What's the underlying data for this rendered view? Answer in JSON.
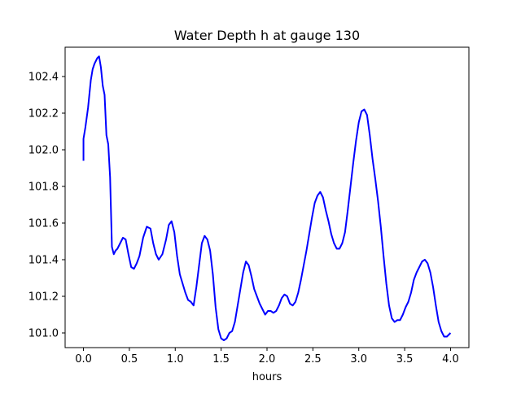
{
  "chart_data": {
    "type": "line",
    "title": "Water Depth h at gauge 130",
    "xlabel": "hours",
    "ylabel": "",
    "xlim": [
      -0.2,
      4.2
    ],
    "ylim": [
      100.92,
      102.56
    ],
    "xticks": [
      0.0,
      0.5,
      1.0,
      1.5,
      2.0,
      2.5,
      3.0,
      3.5,
      4.0
    ],
    "xtick_labels": [
      "0.0",
      "0.5",
      "1.0",
      "1.5",
      "2.0",
      "2.5",
      "3.0",
      "3.5",
      "4.0"
    ],
    "yticks": [
      101.0,
      101.2,
      101.4,
      101.6,
      101.8,
      102.0,
      102.2,
      102.4
    ],
    "ytick_labels": [
      "101.0",
      "101.2",
      "101.4",
      "101.6",
      "101.8",
      "102.0",
      "102.2",
      "102.4"
    ],
    "grid": false,
    "legend": "none",
    "series": [
      {
        "color": "#0000ff",
        "x": [
          0.0,
          0.0,
          0.02,
          0.05,
          0.08,
          0.1,
          0.12,
          0.15,
          0.17,
          0.19,
          0.21,
          0.23,
          0.25,
          0.27,
          0.29,
          0.31,
          0.33,
          0.35,
          0.37,
          0.39,
          0.41,
          0.43,
          0.46,
          0.49,
          0.52,
          0.55,
          0.58,
          0.61,
          0.65,
          0.69,
          0.73,
          0.76,
          0.79,
          0.82,
          0.86,
          0.9,
          0.93,
          0.96,
          0.99,
          1.02,
          1.05,
          1.08,
          1.11,
          1.14,
          1.17,
          1.2,
          1.23,
          1.26,
          1.29,
          1.32,
          1.35,
          1.38,
          1.41,
          1.44,
          1.47,
          1.5,
          1.53,
          1.56,
          1.59,
          1.62,
          1.65,
          1.68,
          1.71,
          1.74,
          1.77,
          1.8,
          1.83,
          1.86,
          1.89,
          1.92,
          1.95,
          1.98,
          2.01,
          2.04,
          2.07,
          2.1,
          2.13,
          2.16,
          2.19,
          2.22,
          2.25,
          2.28,
          2.31,
          2.34,
          2.37,
          2.4,
          2.43,
          2.46,
          2.49,
          2.52,
          2.55,
          2.58,
          2.61,
          2.64,
          2.67,
          2.7,
          2.73,
          2.76,
          2.79,
          2.82,
          2.85,
          2.88,
          2.91,
          2.94,
          2.97,
          3.0,
          3.03,
          3.06,
          3.09,
          3.12,
          3.15,
          3.18,
          3.21,
          3.24,
          3.27,
          3.3,
          3.33,
          3.36,
          3.39,
          3.42,
          3.45,
          3.48,
          3.51,
          3.54,
          3.57,
          3.6,
          3.63,
          3.66,
          3.69,
          3.72,
          3.75,
          3.78,
          3.81,
          3.84,
          3.87,
          3.9,
          3.93,
          3.96,
          4.0
        ],
        "values": [
          101.94,
          102.06,
          102.12,
          102.23,
          102.38,
          102.44,
          102.47,
          102.5,
          102.51,
          102.45,
          102.35,
          102.3,
          102.08,
          102.03,
          101.85,
          101.47,
          101.43,
          101.45,
          101.46,
          101.48,
          101.5,
          101.52,
          101.51,
          101.43,
          101.36,
          101.35,
          101.38,
          101.42,
          101.52,
          101.58,
          101.57,
          101.49,
          101.43,
          101.4,
          101.43,
          101.51,
          101.59,
          101.61,
          101.55,
          101.42,
          101.32,
          101.27,
          101.22,
          101.18,
          101.17,
          101.15,
          101.25,
          101.37,
          101.49,
          101.53,
          101.51,
          101.45,
          101.32,
          101.14,
          101.02,
          100.97,
          100.96,
          100.97,
          101.0,
          101.01,
          101.06,
          101.15,
          101.24,
          101.33,
          101.39,
          101.37,
          101.31,
          101.24,
          101.2,
          101.16,
          101.13,
          101.1,
          101.12,
          101.12,
          101.11,
          101.12,
          101.15,
          101.19,
          101.21,
          101.2,
          101.16,
          101.15,
          101.17,
          101.22,
          101.29,
          101.37,
          101.45,
          101.54,
          101.63,
          101.71,
          101.75,
          101.77,
          101.74,
          101.67,
          101.61,
          101.54,
          101.49,
          101.46,
          101.46,
          101.49,
          101.55,
          101.67,
          101.8,
          101.93,
          102.05,
          102.15,
          102.21,
          102.22,
          102.19,
          102.08,
          101.95,
          101.84,
          101.72,
          101.58,
          101.42,
          101.27,
          101.15,
          101.08,
          101.06,
          101.07,
          101.07,
          101.1,
          101.14,
          101.17,
          101.22,
          101.29,
          101.33,
          101.36,
          101.39,
          101.4,
          101.38,
          101.33,
          101.25,
          101.15,
          101.06,
          101.01,
          100.98,
          100.98,
          101.0
        ]
      }
    ]
  }
}
